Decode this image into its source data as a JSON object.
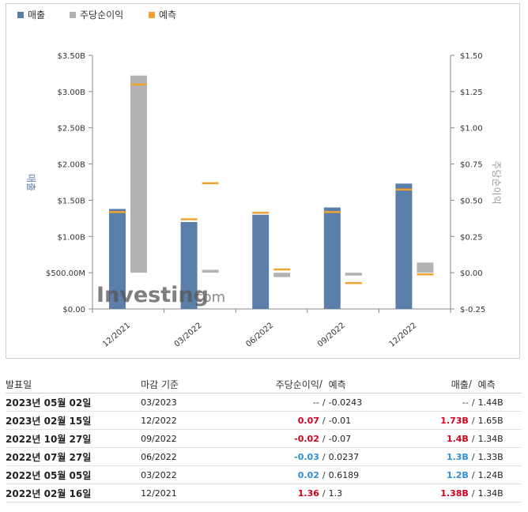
{
  "legend": [
    {
      "label": "매출",
      "color": "#5b7fa8"
    },
    {
      "label": "주당순이익",
      "color": "#b3b3b3"
    },
    {
      "label": "예측",
      "color": "#f0a330"
    }
  ],
  "chart_data": {
    "type": "bar",
    "categories": [
      "12/2021",
      "03/2022",
      "06/2022",
      "09/2022",
      "12/2022"
    ],
    "series": [
      {
        "name": "매출",
        "axis": "left",
        "values": [
          1.38,
          1.2,
          1.3,
          1.4,
          1.73
        ],
        "forecast": [
          1.34,
          1.24,
          1.33,
          1.34,
          1.65
        ]
      },
      {
        "name": "주당순이익",
        "axis": "right",
        "values": [
          1.36,
          0.02,
          -0.03,
          -0.02,
          0.07
        ],
        "forecast": [
          1.3,
          0.6189,
          0.0237,
          -0.07,
          -0.01
        ]
      }
    ],
    "ylabel_left": "매출",
    "ylabel_right": "주당순이익",
    "yticks_left": [
      "$3.50B",
      "$3.00B",
      "$2.50B",
      "$2.00B",
      "$1.50B",
      "$1.00B",
      "$500.00M",
      "$0.00"
    ],
    "yticks_right": [
      "$1.50",
      "$1.25",
      "$1.00",
      "$0.75",
      "$0.50",
      "$0.25",
      "$0.00",
      "$-0.25"
    ],
    "ylim_left": [
      0,
      3.5
    ],
    "ylim_right": [
      -0.25,
      1.5
    ],
    "grid": false
  },
  "watermark": {
    "brand": "Investing",
    "suffix": ".com"
  },
  "table": {
    "headers": {
      "date": "발표일",
      "period": "마감 기준",
      "eps": "주당순이익",
      "eps_forecast": "예측",
      "revenue": "매출",
      "revenue_forecast": "예측",
      "slash": "/"
    },
    "rows": [
      {
        "date": "2023년 05월 02일",
        "period": "03/2023",
        "eps": "--",
        "eps_forecast": "-0.0243",
        "revenue": "--",
        "revenue_forecast": "1.44B",
        "eps_class": "neutral",
        "rev_class": "neutral"
      },
      {
        "date": "2023년 02월 15일",
        "period": "12/2022",
        "eps": "0.07",
        "eps_forecast": "-0.01",
        "revenue": "1.73B",
        "revenue_forecast": "1.65B",
        "eps_class": "red",
        "rev_class": "red"
      },
      {
        "date": "2022년 10월 27일",
        "period": "09/2022",
        "eps": "-0.02",
        "eps_forecast": "-0.07",
        "revenue": "1.4B",
        "revenue_forecast": "1.34B",
        "eps_class": "red",
        "rev_class": "red"
      },
      {
        "date": "2022년 07월 27일",
        "period": "06/2022",
        "eps": "-0.03",
        "eps_forecast": "0.0237",
        "revenue": "1.3B",
        "revenue_forecast": "1.33B",
        "eps_class": "blue",
        "rev_class": "blue"
      },
      {
        "date": "2022년 05월 05일",
        "period": "03/2022",
        "eps": "0.02",
        "eps_forecast": "0.6189",
        "revenue": "1.2B",
        "revenue_forecast": "1.24B",
        "eps_class": "blue",
        "rev_class": "blue"
      },
      {
        "date": "2022년 02월 16일",
        "period": "12/2021",
        "eps": "1.36",
        "eps_forecast": "1.3",
        "revenue": "1.38B",
        "revenue_forecast": "1.34B",
        "eps_class": "red",
        "rev_class": "red"
      }
    ]
  }
}
